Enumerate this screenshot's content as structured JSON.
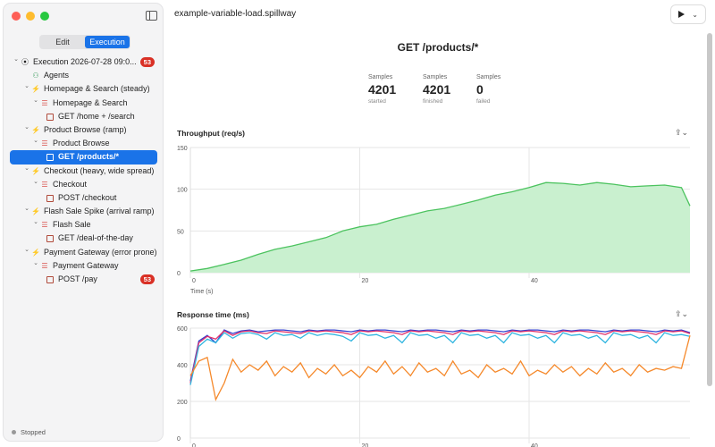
{
  "window": {
    "title": "example-variable-load.spillway"
  },
  "sidebar": {
    "segment": {
      "edit": "Edit",
      "execution": "Execution"
    },
    "tree": [
      {
        "label": "Execution 2026-07-28 09:0...",
        "badge": "53",
        "icon": "execution-icon",
        "chev": true,
        "level": 0
      },
      {
        "label": "Agents",
        "icon": "agents-icon",
        "chev": false,
        "level": 1
      },
      {
        "label": "Homepage & Search (steady)",
        "icon": "bolt-icon",
        "chev": true,
        "level": 1
      },
      {
        "label": "Homepage & Search",
        "icon": "list-icon",
        "chev": true,
        "level": 2
      },
      {
        "label": "GET /home + /search",
        "icon": "request-icon",
        "chev": false,
        "level": 3
      },
      {
        "label": "Product Browse (ramp)",
        "icon": "bolt-icon",
        "chev": true,
        "level": 1
      },
      {
        "label": "Product Browse",
        "icon": "list-icon",
        "chev": true,
        "level": 2
      },
      {
        "label": "GET /products/*",
        "icon": "request-icon",
        "chev": false,
        "level": 3,
        "selected": true
      },
      {
        "label": "Checkout (heavy, wide spread)",
        "icon": "bolt-icon",
        "chev": true,
        "level": 1
      },
      {
        "label": "Checkout",
        "icon": "list-icon",
        "chev": true,
        "level": 2
      },
      {
        "label": "POST /checkout",
        "icon": "request-icon",
        "chev": false,
        "level": 3
      },
      {
        "label": "Flash Sale Spike (arrival ramp)",
        "icon": "bolt-icon",
        "chev": true,
        "level": 1
      },
      {
        "label": "Flash Sale",
        "icon": "list-icon",
        "chev": true,
        "level": 2
      },
      {
        "label": "GET /deal-of-the-day",
        "icon": "request-icon",
        "chev": false,
        "level": 3
      },
      {
        "label": "Payment Gateway (error prone)",
        "icon": "bolt-icon",
        "chev": true,
        "level": 1
      },
      {
        "label": "Payment Gateway",
        "icon": "list-icon",
        "chev": true,
        "level": 2
      },
      {
        "label": "POST /pay",
        "badge": "53",
        "icon": "request-icon",
        "chev": false,
        "level": 3
      }
    ],
    "status": "Stopped"
  },
  "main": {
    "title": "GET /products/*",
    "stats": [
      {
        "key": "Samples",
        "value": "4201",
        "sub": "started"
      },
      {
        "key": "Samples",
        "value": "4201",
        "sub": "finished"
      },
      {
        "key": "Samples",
        "value": "0",
        "sub": "failed"
      }
    ]
  },
  "chart_data": [
    {
      "type": "area",
      "title": "Throughput (req/s)",
      "xlabel": "Time (s)",
      "ylabel": "",
      "xlim": [
        0,
        59
      ],
      "ylim": [
        0,
        150
      ],
      "yticks": [
        0,
        50,
        100,
        150
      ],
      "xticks": [
        0,
        20,
        40
      ],
      "grid": true,
      "colors": {
        "line": "#4cc35f",
        "fill": "#c9f0cf"
      },
      "series": [
        {
          "x": [
            0,
            2,
            4,
            6,
            8,
            10,
            12,
            14,
            16,
            18,
            20,
            22,
            24,
            26,
            28,
            30,
            32,
            34,
            36,
            38,
            40,
            42,
            44,
            46,
            48,
            50,
            52,
            54,
            56,
            58,
            59
          ],
          "values": [
            2,
            5,
            10,
            15,
            22,
            28,
            32,
            37,
            42,
            50,
            55,
            58,
            64,
            69,
            74,
            77,
            82,
            87,
            93,
            97,
            102,
            108,
            107,
            105,
            108,
            106,
            103,
            104,
            105,
            102,
            80
          ]
        }
      ]
    },
    {
      "type": "line",
      "title": "Response time (ms)",
      "xlabel": "",
      "ylabel": "",
      "xlim": [
        0,
        59
      ],
      "ylim": [
        0,
        600
      ],
      "yticks": [
        0,
        200,
        400,
        600
      ],
      "xticks": [
        0,
        20,
        40
      ],
      "grid": true,
      "series": [
        {
          "color": "#2f3fd0",
          "x": [
            0,
            1,
            2,
            3,
            4,
            5,
            6,
            7,
            8,
            9,
            10,
            11,
            12,
            13,
            14,
            15,
            16,
            17,
            18,
            19,
            20,
            21,
            22,
            23,
            24,
            25,
            26,
            27,
            28,
            29,
            30,
            31,
            32,
            33,
            34,
            35,
            36,
            37,
            38,
            39,
            40,
            41,
            42,
            43,
            44,
            45,
            46,
            47,
            48,
            49,
            50,
            51,
            52,
            53,
            54,
            55,
            56,
            57,
            58,
            59
          ],
          "values": [
            310,
            530,
            560,
            520,
            590,
            570,
            585,
            590,
            580,
            585,
            590,
            590,
            585,
            580,
            590,
            585,
            590,
            590,
            585,
            580,
            590,
            585,
            590,
            590,
            585,
            580,
            590,
            585,
            590,
            590,
            585,
            580,
            590,
            585,
            590,
            590,
            585,
            580,
            590,
            585,
            590,
            590,
            585,
            580,
            590,
            585,
            590,
            590,
            585,
            580,
            590,
            585,
            590,
            590,
            585,
            580,
            590,
            585,
            590,
            575
          ]
        },
        {
          "color": "#e0306a",
          "x": [
            0,
            1,
            2,
            3,
            4,
            5,
            6,
            7,
            8,
            9,
            10,
            11,
            12,
            13,
            14,
            15,
            16,
            17,
            18,
            19,
            20,
            21,
            22,
            23,
            24,
            25,
            26,
            27,
            28,
            29,
            30,
            31,
            32,
            33,
            34,
            35,
            36,
            37,
            38,
            39,
            40,
            41,
            42,
            43,
            44,
            45,
            46,
            47,
            48,
            49,
            50,
            51,
            52,
            53,
            54,
            55,
            56,
            57,
            58,
            59
          ],
          "values": [
            300,
            520,
            555,
            540,
            585,
            560,
            580,
            585,
            575,
            570,
            585,
            580,
            575,
            570,
            585,
            580,
            585,
            580,
            575,
            565,
            585,
            580,
            585,
            580,
            575,
            565,
            585,
            580,
            585,
            580,
            575,
            565,
            585,
            580,
            585,
            580,
            575,
            565,
            585,
            580,
            585,
            580,
            575,
            565,
            585,
            580,
            585,
            580,
            575,
            565,
            585,
            580,
            585,
            580,
            575,
            565,
            585,
            580,
            585,
            570
          ]
        },
        {
          "color": "#30b5e0",
          "x": [
            0,
            1,
            2,
            3,
            4,
            5,
            6,
            7,
            8,
            9,
            10,
            11,
            12,
            13,
            14,
            15,
            16,
            17,
            18,
            19,
            20,
            21,
            22,
            23,
            24,
            25,
            26,
            27,
            28,
            29,
            30,
            31,
            32,
            33,
            34,
            35,
            36,
            37,
            38,
            39,
            40,
            41,
            42,
            43,
            44,
            45,
            46,
            47,
            48,
            49,
            50,
            51,
            52,
            53,
            54,
            55,
            56,
            57,
            58,
            59
          ],
          "values": [
            290,
            500,
            540,
            520,
            575,
            545,
            570,
            575,
            565,
            540,
            575,
            560,
            565,
            545,
            575,
            560,
            570,
            565,
            555,
            530,
            575,
            560,
            565,
            545,
            560,
            520,
            575,
            560,
            565,
            545,
            560,
            520,
            575,
            560,
            565,
            545,
            560,
            520,
            575,
            560,
            565,
            545,
            560,
            520,
            575,
            560,
            565,
            545,
            560,
            520,
            575,
            560,
            565,
            545,
            560,
            520,
            575,
            560,
            565,
            555
          ]
        },
        {
          "color": "#f5892b",
          "x": [
            0,
            1,
            2,
            3,
            4,
            5,
            6,
            7,
            8,
            9,
            10,
            11,
            12,
            13,
            14,
            15,
            16,
            17,
            18,
            19,
            20,
            21,
            22,
            23,
            24,
            25,
            26,
            27,
            28,
            29,
            30,
            31,
            32,
            33,
            34,
            35,
            36,
            37,
            38,
            39,
            40,
            41,
            42,
            43,
            44,
            45,
            46,
            47,
            48,
            49,
            50,
            51,
            52,
            53,
            54,
            55,
            56,
            57,
            58,
            59
          ],
          "values": [
            340,
            420,
            440,
            210,
            300,
            430,
            360,
            400,
            370,
            420,
            340,
            390,
            360,
            410,
            330,
            380,
            350,
            400,
            340,
            370,
            330,
            390,
            360,
            420,
            350,
            390,
            340,
            410,
            360,
            380,
            340,
            420,
            350,
            370,
            330,
            400,
            360,
            380,
            350,
            420,
            340,
            370,
            350,
            400,
            360,
            390,
            340,
            380,
            350,
            410,
            360,
            380,
            340,
            400,
            360,
            380,
            370,
            390,
            380,
            560
          ]
        }
      ]
    }
  ]
}
